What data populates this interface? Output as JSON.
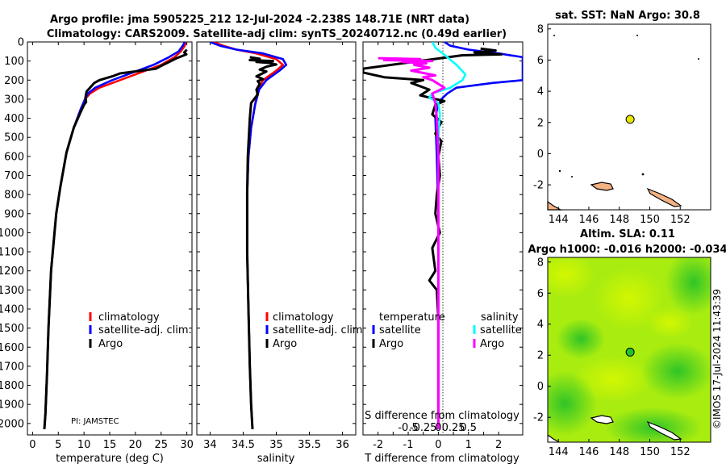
{
  "figure": {
    "title_line1": "Argo profile: jma 5905225_212 12-Jul-2024 -2.238S 148.71E (NRT data)",
    "title_line2": "Climatology: CARS2009. Satellite-adj clim: synTS_20240712.nc (0.49d earlier)",
    "pi_label": "PI: JAMSTEC",
    "footer": "©IMOS 17-Jul-2024 11:43:39"
  },
  "colors": {
    "climatology": "#ff0000",
    "satellite_adj": "#0000ff",
    "argo": "#000000",
    "satellite_t": "#00ffff",
    "argo_s": "#ff00ff",
    "sst_marker": "#e6e600",
    "land": "#f4b183",
    "sla_green_light": "#b5f000",
    "sla_green_dark": "#2ec82e"
  },
  "chart_data": [
    {
      "id": "temperature",
      "type": "line",
      "xlabel": "temperature (deg C)",
      "ylabel": "",
      "xlim": [
        -1,
        31
      ],
      "ylim": [
        2060,
        0
      ],
      "xticks": [
        0,
        5,
        10,
        15,
        20,
        25,
        30
      ],
      "yticks": [
        0,
        100,
        200,
        300,
        400,
        500,
        600,
        700,
        800,
        900,
        1000,
        1100,
        1200,
        1300,
        1400,
        1500,
        1600,
        1700,
        1800,
        1900,
        2000
      ],
      "legend": [
        "climatology",
        "satellite-adj. clim.",
        "Argo"
      ],
      "series": [
        {
          "name": "climatology",
          "color_key": "climatology",
          "x": [
            29.8,
            29.6,
            28.8,
            27.6,
            25.0,
            21.0,
            17.0,
            13.0,
            11.2,
            10.2,
            9.4,
            8.0,
            6.6,
            5.4,
            4.6,
            3.6,
            3.1,
            2.8,
            2.5,
            2.3
          ],
          "y": [
            0,
            20,
            50,
            80,
            120,
            160,
            200,
            240,
            270,
            300,
            350,
            450,
            580,
            760,
            900,
            1200,
            1500,
            1750,
            1950,
            2030
          ]
        },
        {
          "name": "satellite-adj. clim.",
          "color_key": "satellite_adj",
          "x": [
            29.6,
            29.2,
            28.4,
            26.5,
            23.5,
            19.5,
            15.5,
            12.2,
            10.8,
            10.2,
            9.4,
            8.0,
            6.6,
            5.4,
            4.6,
            3.6,
            3.1,
            2.8,
            2.5,
            2.3
          ],
          "y": [
            0,
            20,
            50,
            80,
            120,
            160,
            200,
            240,
            270,
            300,
            350,
            450,
            580,
            760,
            900,
            1200,
            1500,
            1750,
            1950,
            2030
          ]
        },
        {
          "name": "Argo",
          "color_key": "argo",
          "x": [
            30.0,
            29.5,
            29.9,
            28.0,
            25.0,
            24.0,
            17.0,
            15.5,
            13.0,
            12.0,
            10.5,
            10.3,
            10.4,
            10.0,
            9.3,
            8.0,
            6.6,
            5.4,
            4.6,
            3.6,
            3.1,
            2.8,
            2.5,
            2.3
          ],
          "y": [
            40,
            55,
            65,
            85,
            125,
            140,
            165,
            180,
            200,
            215,
            260,
            290,
            315,
            330,
            370,
            450,
            580,
            760,
            900,
            1200,
            1500,
            1750,
            1950,
            2030
          ]
        }
      ]
    },
    {
      "id": "salinity",
      "type": "line",
      "xlabel": "salinity",
      "xlim": [
        33.8,
        36.2
      ],
      "ylim": [
        2060,
        0
      ],
      "xticks": [
        34,
        34.5,
        35,
        35.5,
        36
      ],
      "legend": [
        "climatology",
        "satellite-adj. clim.",
        "Argo"
      ],
      "series": [
        {
          "name": "climatology",
          "color_key": "climatology",
          "x": [
            34.05,
            34.2,
            34.4,
            34.7,
            35.0,
            35.1,
            35.0,
            34.8,
            34.72,
            34.68,
            34.62,
            34.58,
            34.56,
            34.56,
            34.58,
            34.6,
            34.62,
            34.64
          ],
          "y": [
            0,
            20,
            40,
            60,
            90,
            120,
            150,
            200,
            250,
            330,
            450,
            600,
            800,
            1100,
            1400,
            1700,
            1900,
            2030
          ]
        },
        {
          "name": "satellite-adj. clim.",
          "color_key": "satellite_adj",
          "x": [
            34.0,
            34.15,
            34.4,
            34.8,
            35.1,
            35.15,
            35.05,
            34.85,
            34.74,
            34.68,
            34.62,
            34.58,
            34.56,
            34.56,
            34.58,
            34.6,
            34.62,
            34.64
          ],
          "y": [
            0,
            20,
            40,
            60,
            90,
            120,
            150,
            200,
            250,
            330,
            450,
            600,
            800,
            1100,
            1400,
            1700,
            1900,
            2030
          ]
        },
        {
          "name": "Argo",
          "color_key": "argo",
          "x": [
            34.6,
            34.75,
            34.6,
            34.95,
            34.7,
            34.9,
            35.0,
            34.85,
            34.75,
            34.85,
            34.7,
            34.8,
            34.72,
            34.75,
            34.7,
            34.72,
            34.62,
            34.6,
            34.57,
            34.56,
            34.56,
            34.58,
            34.6,
            34.62,
            34.64
          ],
          "y": [
            80,
            88,
            95,
            100,
            105,
            110,
            118,
            130,
            145,
            155,
            180,
            195,
            205,
            220,
            250,
            275,
            320,
            400,
            600,
            800,
            1100,
            1400,
            1700,
            1900,
            2030
          ]
        }
      ]
    },
    {
      "id": "difference",
      "type": "line",
      "xlabel": "T difference from climatology",
      "xlabel2": "S difference from climatology",
      "xlim": [
        -2.5,
        2.8
      ],
      "ylim": [
        2060,
        0
      ],
      "xticks": [
        -2,
        -1.5,
        -1,
        -0.5,
        0,
        0.5,
        1,
        1.5,
        2
      ],
      "xticklabels": [
        "-2",
        "",
        "-1",
        "",
        "0",
        "",
        "1",
        "",
        "2"
      ],
      "s_xticks": [
        -1,
        -0.5,
        0,
        0.5,
        1
      ],
      "s_xticklabels": [
        "-0.5",
        "-0.25",
        "0",
        "0.25",
        "0.5"
      ],
      "legend_title_t": "temperature",
      "legend_title_s": "salinity",
      "legend_t": [
        "satellite",
        "Argo"
      ],
      "legend_s": [
        "satellite",
        "Argo"
      ],
      "series": [
        {
          "name": "T satellite",
          "color_key": "satellite_adj",
          "x": [
            0.2,
            0.4,
            1.0,
            2.0,
            2.8,
            2.8,
            1.8,
            0.6,
            0.3,
            0.1,
            0.0,
            -0.05,
            -0.1,
            -0.05,
            0.0,
            0.0,
            0.0,
            0.0,
            0.0
          ],
          "y": [
            0,
            20,
            40,
            60,
            80,
            200,
            215,
            240,
            270,
            300,
            330,
            360,
            400,
            600,
            900,
            1200,
            1500,
            1800,
            2030
          ]
        },
        {
          "name": "T Argo",
          "color_key": "argo",
          "x": [
            1.4,
            1.9,
            1.2,
            2.1,
            0.8,
            -2.5,
            -2.5,
            -1.8,
            -0.5,
            -0.9,
            -0.3,
            -0.6,
            0.2,
            -0.1,
            -0.2,
            0.1,
            -0.1,
            0.1,
            0.0,
            0.05,
            -0.05,
            -0.1,
            0.05,
            -0.2,
            -0.1,
            -0.3,
            -0.05,
            0.0,
            0.0,
            0.0,
            0.0
          ],
          "y": [
            35,
            45,
            55,
            65,
            70,
            140,
            160,
            185,
            200,
            215,
            250,
            280,
            310,
            330,
            380,
            420,
            480,
            520,
            600,
            700,
            800,
            900,
            1000,
            1080,
            1200,
            1250,
            1300,
            1450,
            1600,
            1800,
            2030
          ]
        },
        {
          "name": "S satellite",
          "color_key": "satellite_t",
          "x": [
            -0.2,
            -0.1,
            0.3,
            0.6,
            0.9,
            0.8,
            0.6,
            0.4,
            -0.2,
            -0.3,
            0.0,
            0.05,
            0.0,
            0.0,
            0.0,
            0.0,
            0.0,
            0.0
          ],
          "y": [
            0,
            30,
            80,
            120,
            170,
            200,
            220,
            240,
            270,
            290,
            320,
            380,
            500,
            800,
            1200,
            1500,
            1800,
            2030
          ]
        },
        {
          "name": "S Argo",
          "color_key": "argo_s",
          "x": [
            -2.0,
            -0.6,
            -1.8,
            -0.2,
            -1.2,
            -0.4,
            -0.8,
            -0.3,
            -0.9,
            -0.1,
            -0.5,
            -0.2,
            0.2,
            -0.2,
            -0.1,
            -0.05,
            0.0,
            0.0,
            0.0,
            0.0,
            0.0
          ],
          "y": [
            85,
            90,
            95,
            100,
            105,
            112,
            120,
            135,
            150,
            175,
            185,
            200,
            240,
            270,
            320,
            400,
            600,
            900,
            1300,
            1700,
            2030
          ]
        }
      ]
    },
    {
      "id": "sst_map",
      "type": "scatter",
      "title": "sat. SST: NaN Argo: 30.8",
      "xlim": [
        143.3,
        154
      ],
      "ylim": [
        -3.6,
        8.3
      ],
      "xticks": [
        144,
        146,
        148,
        150,
        152
      ],
      "yticks": [
        -2,
        0,
        2,
        4,
        6,
        8
      ],
      "points": [
        {
          "x": 148.71,
          "y": 2.2,
          "label": "Argo"
        }
      ]
    },
    {
      "id": "sla_map",
      "type": "heatmap",
      "title": "Altim. SLA: 0.11",
      "subtitle": "Argo h1000: -0.016 h2000: -0.034",
      "xlim": [
        143.3,
        154
      ],
      "ylim": [
        -3.6,
        8.3
      ],
      "xticks": [
        144,
        146,
        148,
        150,
        152
      ],
      "yticks": [
        -2,
        0,
        2,
        4,
        6,
        8
      ],
      "points": [
        {
          "x": 148.71,
          "y": 2.2,
          "label": "Argo"
        }
      ]
    }
  ]
}
